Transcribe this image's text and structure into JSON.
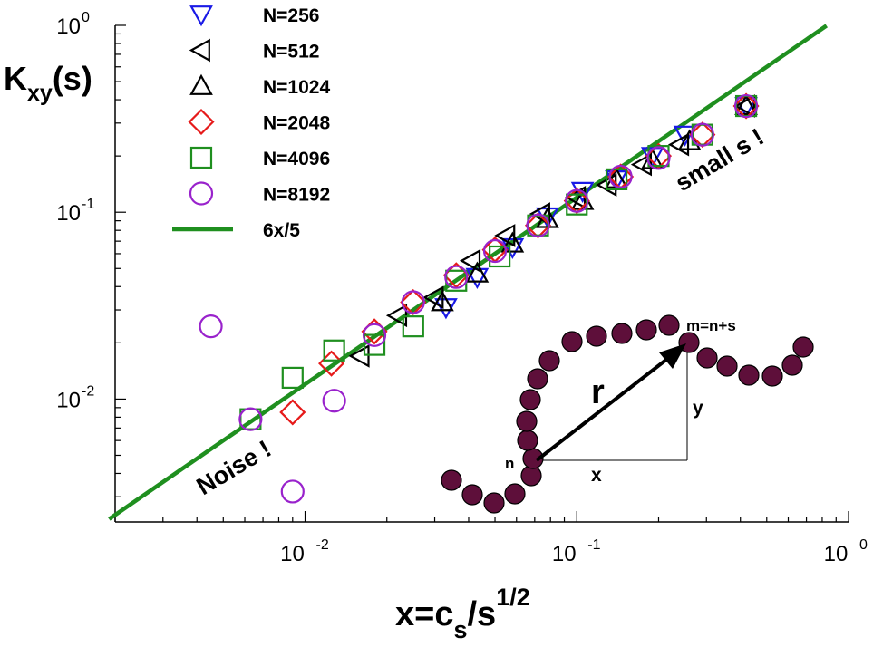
{
  "chart_data": {
    "type": "scatter",
    "xscale": "log",
    "yscale": "log",
    "xlim": [
      0.002,
      1.0
    ],
    "ylim": [
      0.0022,
      1.0
    ],
    "x_major_ticks": [
      {
        "value": 0.01,
        "base": "10",
        "exp": "-2"
      },
      {
        "value": 0.1,
        "base": "10",
        "exp": "-1"
      },
      {
        "value": 1.0,
        "base": "10",
        "exp": "0"
      }
    ],
    "y_major_ticks": [
      {
        "value": 0.01,
        "base": "10",
        "exp": "-2"
      },
      {
        "value": 0.1,
        "base": "10",
        "exp": "-1"
      },
      {
        "value": 1.0,
        "base": "10",
        "exp": "0"
      }
    ],
    "ylabel": {
      "main": "K",
      "sub": "xy",
      "tail": "(s)"
    },
    "xlabel": {
      "pre": "x=c",
      "sub": "s",
      "mid": "/s",
      "sup": "1/2"
    },
    "series": [
      {
        "name": "N=256",
        "marker": "triangle-down",
        "color": "#1a1ae6",
        "points": [
          [
            0.033,
            0.031
          ],
          [
            0.043,
            0.045
          ],
          [
            0.058,
            0.065
          ],
          [
            0.078,
            0.095
          ],
          [
            0.105,
            0.13
          ],
          [
            0.14,
            0.15
          ],
          [
            0.19,
            0.2
          ],
          [
            0.25,
            0.26
          ],
          [
            0.42,
            0.37
          ]
        ]
      },
      {
        "name": "N=512",
        "marker": "triangle-left",
        "color": "#000000",
        "points": [
          [
            0.016,
            0.017
          ],
          [
            0.022,
            0.028
          ],
          [
            0.03,
            0.035
          ],
          [
            0.041,
            0.055
          ],
          [
            0.055,
            0.075
          ],
          [
            0.074,
            0.098
          ],
          [
            0.1,
            0.12
          ],
          [
            0.13,
            0.14
          ],
          [
            0.175,
            0.18
          ],
          [
            0.24,
            0.23
          ],
          [
            0.42,
            0.37
          ]
        ]
      },
      {
        "name": "N=1024",
        "marker": "triangle-up",
        "color": "#000000",
        "points": [
          [
            0.032,
            0.033
          ],
          [
            0.043,
            0.047
          ],
          [
            0.058,
            0.068
          ],
          [
            0.078,
            0.092
          ],
          [
            0.105,
            0.115
          ],
          [
            0.14,
            0.15
          ],
          [
            0.19,
            0.19
          ],
          [
            0.26,
            0.24
          ],
          [
            0.42,
            0.37
          ]
        ]
      },
      {
        "name": "N=2048",
        "marker": "diamond",
        "color": "#e61a1a",
        "points": [
          [
            0.009,
            0.0085
          ],
          [
            0.0125,
            0.0155
          ],
          [
            0.018,
            0.023
          ],
          [
            0.025,
            0.033
          ],
          [
            0.036,
            0.046
          ],
          [
            0.05,
            0.063
          ],
          [
            0.072,
            0.085
          ],
          [
            0.1,
            0.115
          ],
          [
            0.145,
            0.155
          ],
          [
            0.2,
            0.2
          ],
          [
            0.29,
            0.26
          ],
          [
            0.42,
            0.37
          ]
        ]
      },
      {
        "name": "N=4096",
        "marker": "square",
        "color": "#1f8f1f",
        "points": [
          [
            0.0063,
            0.0078
          ],
          [
            0.009,
            0.013
          ],
          [
            0.0128,
            0.0182
          ],
          [
            0.018,
            0.0195
          ],
          [
            0.025,
            0.0245
          ],
          [
            0.036,
            0.043
          ],
          [
            0.052,
            0.058
          ],
          [
            0.072,
            0.085
          ],
          [
            0.1,
            0.11
          ],
          [
            0.14,
            0.15
          ],
          [
            0.2,
            0.2
          ],
          [
            0.29,
            0.26
          ],
          [
            0.42,
            0.37
          ]
        ]
      },
      {
        "name": "N=8192",
        "marker": "circle",
        "color": "#9922cc",
        "points": [
          [
            0.0045,
            0.0245
          ],
          [
            0.009,
            0.0032
          ],
          [
            0.0063,
            0.0078
          ],
          [
            0.0128,
            0.0098
          ],
          [
            0.018,
            0.022
          ],
          [
            0.025,
            0.033
          ],
          [
            0.036,
            0.045
          ],
          [
            0.05,
            0.062
          ],
          [
            0.072,
            0.085
          ],
          [
            0.1,
            0.115
          ],
          [
            0.145,
            0.155
          ],
          [
            0.2,
            0.195
          ],
          [
            0.29,
            0.26
          ],
          [
            0.42,
            0.37
          ]
        ]
      }
    ],
    "fit_line": {
      "name": "6x/5",
      "slope": 1.2,
      "color": "#1f8f1f"
    },
    "annotations": [
      "small s !",
      "Noise !"
    ],
    "inset": {
      "labels": {
        "r": "r",
        "x": "x",
        "y": "y",
        "n": "n",
        "m": "m=n+s"
      },
      "bead_color": "#5e0f3a"
    }
  }
}
